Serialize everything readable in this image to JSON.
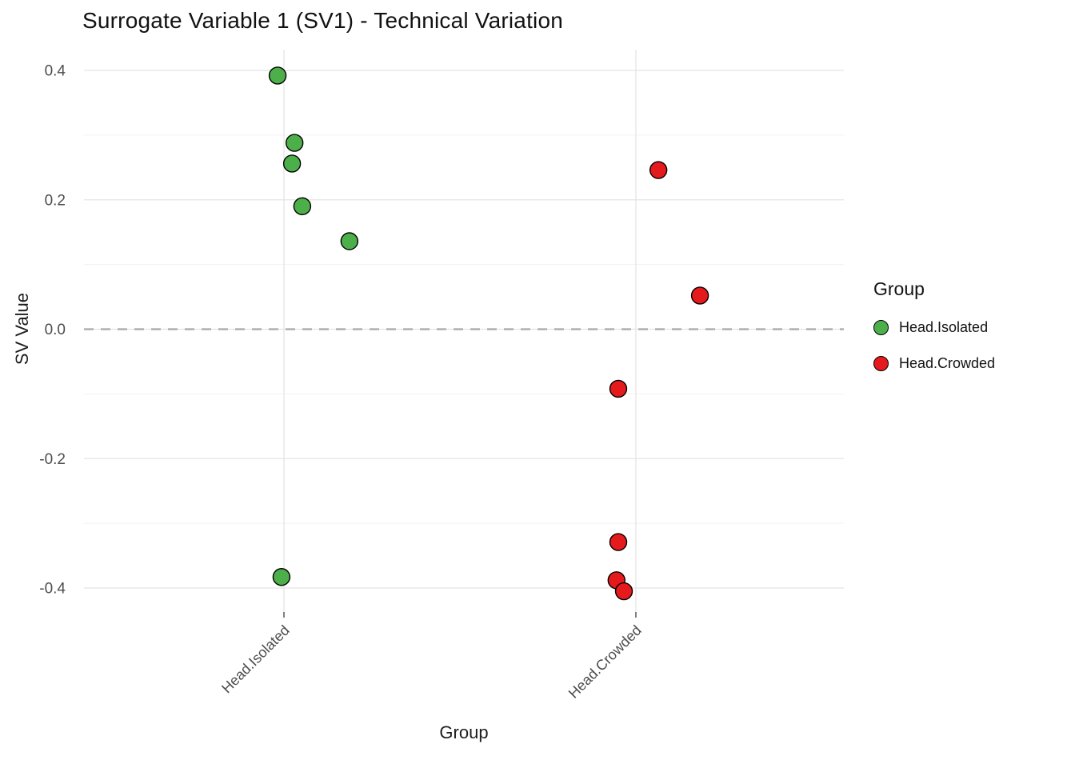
{
  "chart_data": {
    "type": "scatter",
    "title": "Surrogate Variable 1 (SV1) - Technical Variation",
    "xlabel": "Group",
    "ylabel": "SV Value",
    "categories": [
      "Head.Isolated",
      "Head.Crowded"
    ],
    "ylim": [
      -0.44,
      0.43
    ],
    "yticks": [
      0.4,
      0.2,
      0.0,
      -0.2,
      -0.4
    ],
    "ytick_labels": [
      "0.4",
      "0.2",
      "0.0",
      "-0.2",
      "-0.4"
    ],
    "minor_yticks": [
      0.3,
      0.1,
      -0.1,
      -0.3
    ],
    "grid": true,
    "zero_line": {
      "y": 0.0,
      "style": "dashed",
      "color": "#a8a8a8"
    },
    "legend": {
      "title": "Group",
      "position": "right",
      "entries": [
        {
          "label": "Head.Isolated",
          "color": "#4daf4a"
        },
        {
          "label": "Head.Crowded",
          "color": "#e41a1c"
        }
      ]
    },
    "series": [
      {
        "name": "Head.Isolated",
        "color": "#4daf4a",
        "points": [
          {
            "category": "Head.Isolated",
            "jitter": -0.018,
            "y": 0.392
          },
          {
            "category": "Head.Isolated",
            "jitter": 0.03,
            "y": 0.288
          },
          {
            "category": "Head.Isolated",
            "jitter": 0.023,
            "y": 0.256
          },
          {
            "category": "Head.Isolated",
            "jitter": 0.052,
            "y": 0.19
          },
          {
            "category": "Head.Isolated",
            "jitter": 0.186,
            "y": 0.136
          },
          {
            "category": "Head.Isolated",
            "jitter": -0.007,
            "y": -0.383
          }
        ]
      },
      {
        "name": "Head.Crowded",
        "color": "#e41a1c",
        "points": [
          {
            "category": "Head.Crowded",
            "jitter": 0.064,
            "y": 0.246
          },
          {
            "category": "Head.Crowded",
            "jitter": 0.182,
            "y": 0.052
          },
          {
            "category": "Head.Crowded",
            "jitter": -0.05,
            "y": -0.092
          },
          {
            "category": "Head.Crowded",
            "jitter": -0.05,
            "y": -0.329
          },
          {
            "category": "Head.Crowded",
            "jitter": -0.055,
            "y": -0.388
          },
          {
            "category": "Head.Crowded",
            "jitter": -0.034,
            "y": -0.405
          }
        ]
      }
    ]
  }
}
